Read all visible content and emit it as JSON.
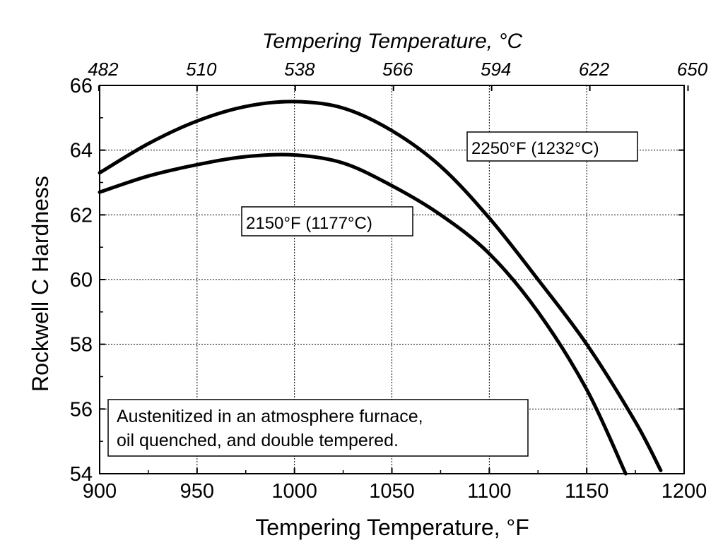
{
  "chart_data": {
    "type": "line",
    "title": "",
    "xlabel": "Tempering Temperature, °F",
    "x2label": "Tempering Temperature, °C",
    "ylabel": "Rockwell C Hardness",
    "xlim": [
      900,
      1200
    ],
    "ylim": [
      54,
      66
    ],
    "x_ticks": [
      "900",
      "950",
      "1000",
      "1050",
      "1100",
      "1150",
      "1200"
    ],
    "x2_ticks": [
      "482",
      "510",
      "538",
      "566",
      "594",
      "622",
      "650"
    ],
    "y_ticks": [
      "54",
      "56",
      "58",
      "60",
      "62",
      "64",
      "66"
    ],
    "grid": true,
    "series": [
      {
        "name": "2250°F (1232°C)",
        "x": [
          900,
          925,
          950,
          975,
          1000,
          1025,
          1050,
          1075,
          1100,
          1125,
          1150,
          1175,
          1188
        ],
        "y": [
          63.3,
          64.2,
          64.9,
          65.35,
          65.5,
          65.3,
          64.6,
          63.5,
          61.9,
          60.0,
          58.0,
          55.6,
          54.1
        ]
      },
      {
        "name": "2150°F (1177°C)",
        "x": [
          900,
          925,
          950,
          975,
          1000,
          1025,
          1050,
          1075,
          1100,
          1125,
          1150,
          1170
        ],
        "y": [
          62.7,
          63.2,
          63.55,
          63.8,
          63.85,
          63.6,
          62.9,
          62.0,
          60.8,
          59.0,
          56.6,
          54.0
        ]
      }
    ],
    "annotations": {
      "label_2250": "2250°F (1232°C)",
      "label_2150": "2150°F (1177°C)",
      "note_line1": "Austenitized in an atmosphere furnace,",
      "note_line2": "oil quenched, and double tempered."
    }
  }
}
